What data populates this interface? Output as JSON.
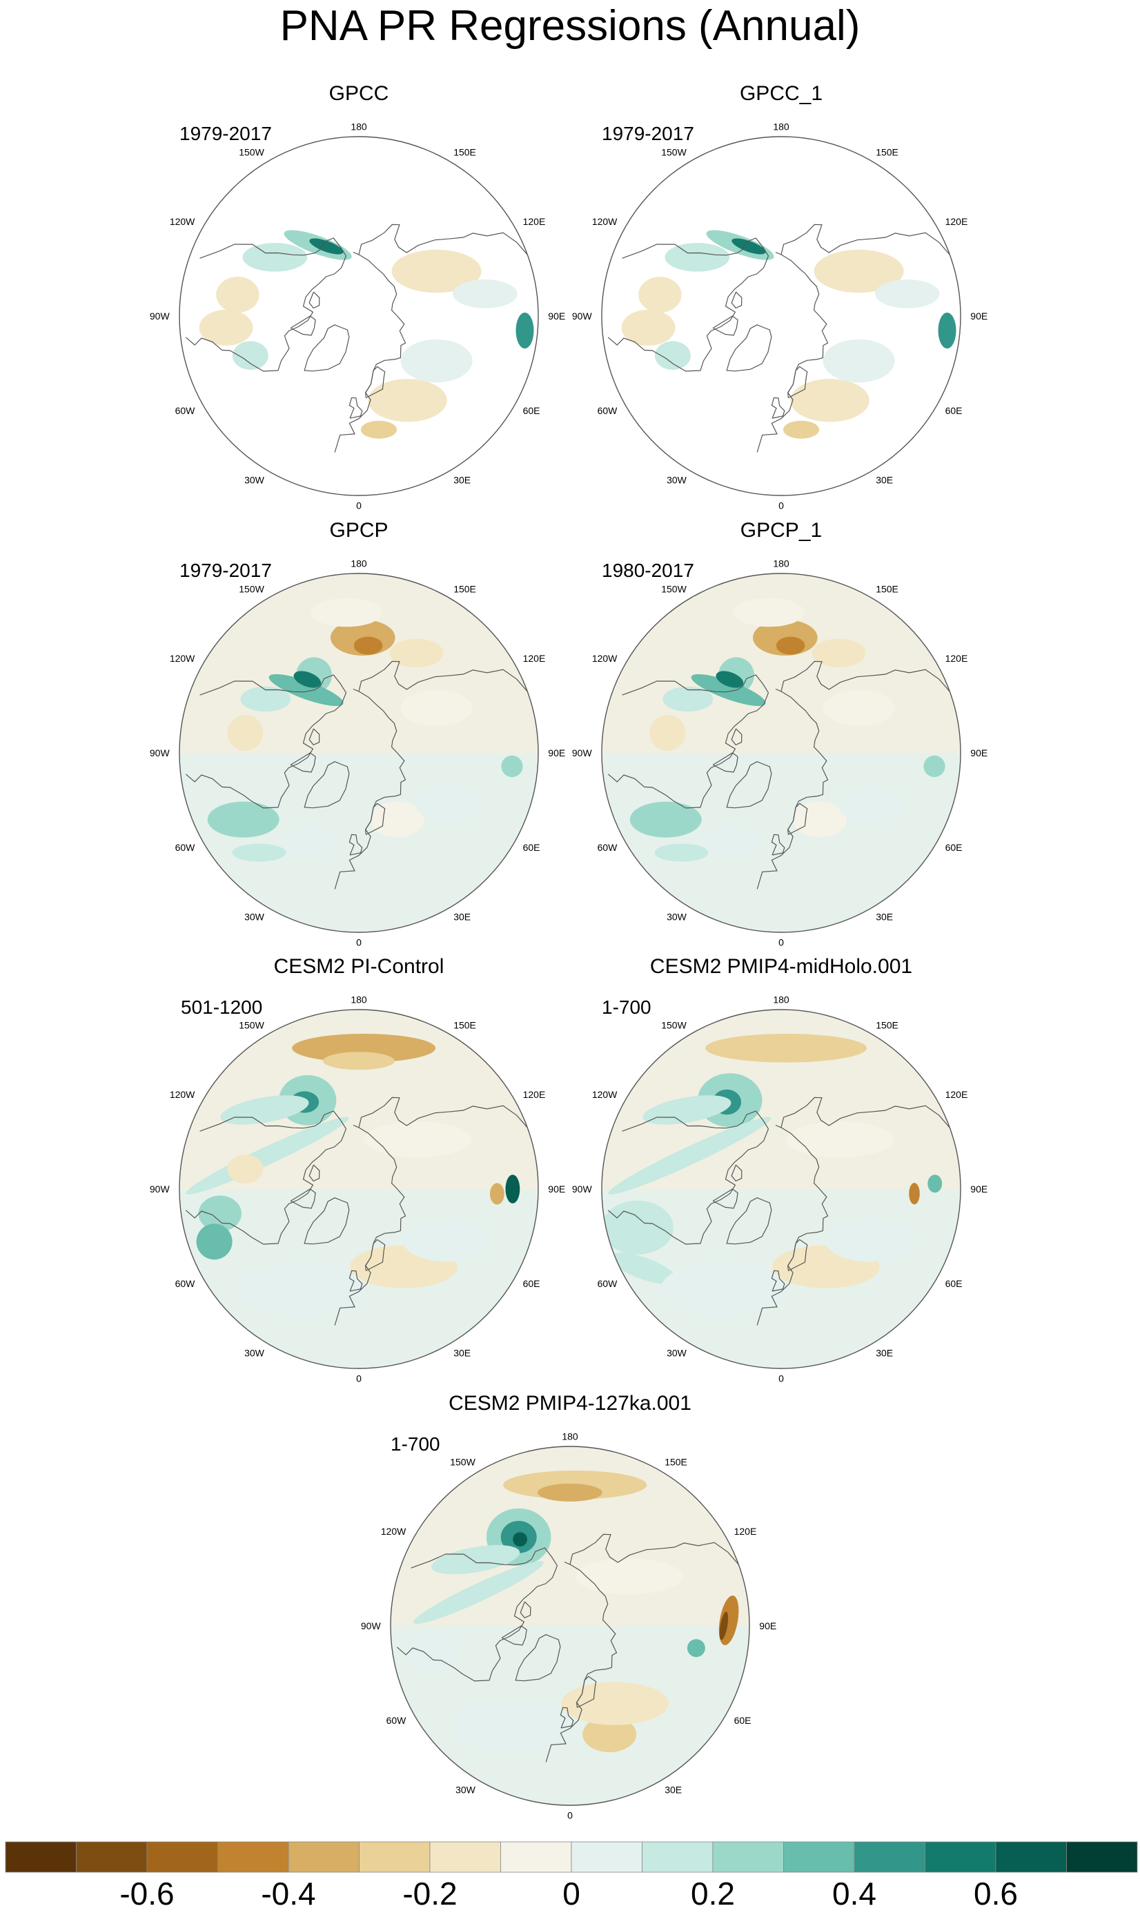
{
  "title": "PNA PR Regressions (Annual)",
  "panels": [
    {
      "title": "GPCC",
      "period": "1979-2017",
      "style": "gpcc"
    },
    {
      "title": "GPCC_1",
      "period": "1979-2017",
      "style": "gpcc"
    },
    {
      "title": "GPCP",
      "period": "1979-2017",
      "style": "gpcp"
    },
    {
      "title": "GPCP_1",
      "period": "1980-2017",
      "style": "gpcp"
    },
    {
      "title": "CESM2 PI-Control",
      "period": "501-1200",
      "style": "cesm_pi"
    },
    {
      "title": "CESM2 PMIP4-midHolo.001",
      "period": "1-700",
      "style": "cesm_mh"
    },
    {
      "title": "CESM2 PMIP4-127ka.001",
      "period": "1-700",
      "style": "cesm_127"
    }
  ],
  "longitude_labels": [
    "180",
    "150E",
    "120E",
    "90E",
    "60E",
    "30E",
    "0",
    "30W",
    "60W",
    "90W",
    "120W",
    "150W"
  ],
  "colorbar": {
    "colors": [
      "#5b3309",
      "#7e4d12",
      "#a1661b",
      "#c1832f",
      "#d7ae63",
      "#e9d198",
      "#f3e6c4",
      "#f5f2e8",
      "#e4f1ef",
      "#c6e9e1",
      "#9cd8ca",
      "#68bdac",
      "#32968a",
      "#147a6c",
      "#075e52",
      "#013e33"
    ],
    "tick_values": [
      "-0.6",
      "-0.4",
      "-0.2",
      "0",
      "0.2",
      "0.4",
      "0.6"
    ]
  }
}
